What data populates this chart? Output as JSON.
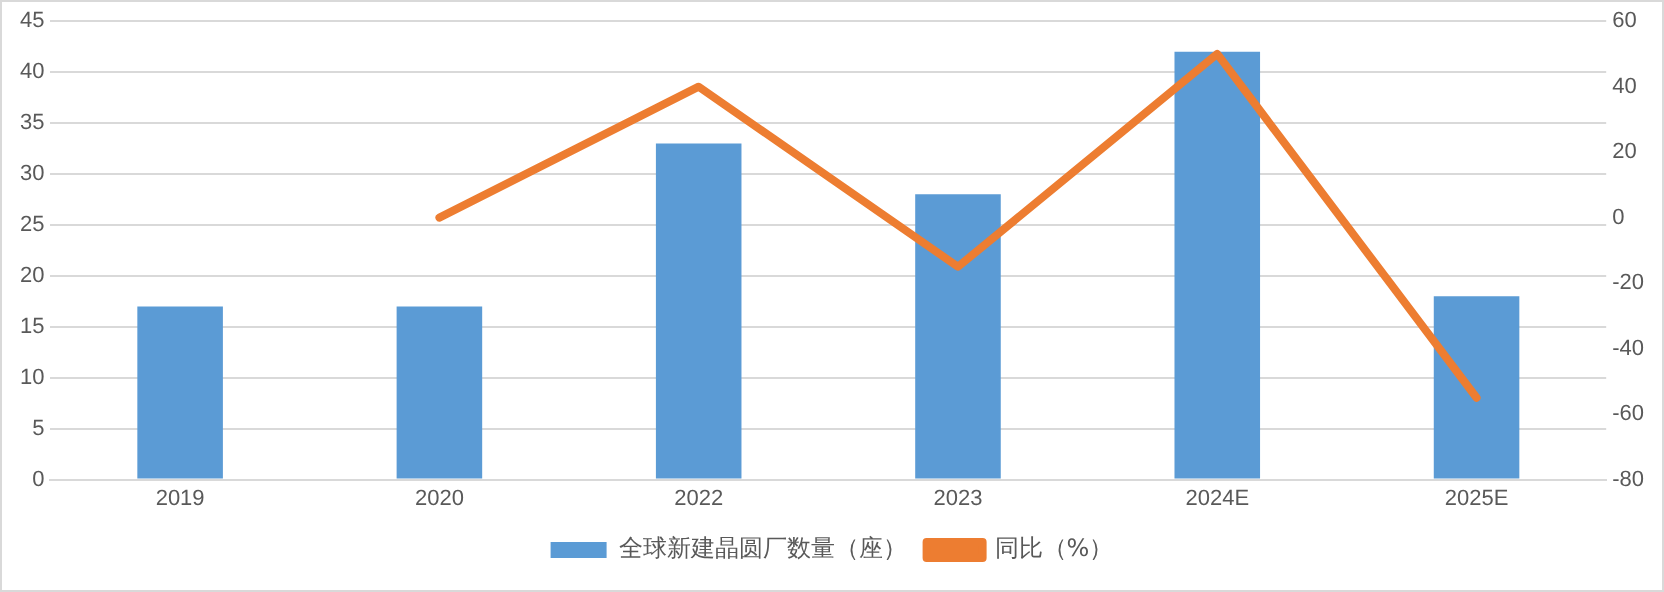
{
  "chart_data": {
    "type": "bar",
    "categories": [
      "2019",
      "2020",
      "2022",
      "2023",
      "2024E",
      "2025E"
    ],
    "series": [
      {
        "name": "全球新建晶圆厂数量（座）",
        "color": "#5b9bd5",
        "values": [
          17,
          17,
          33,
          28,
          42,
          18
        ]
      },
      {
        "name": "同比（%）",
        "type": "line",
        "axis": "y2",
        "color": "#ed7d31",
        "values": [
          null,
          0,
          40,
          -15,
          50,
          -55
        ]
      }
    ],
    "ylim": [
      0,
      45
    ],
    "yticks": [
      0,
      5,
      10,
      15,
      20,
      25,
      30,
      35,
      40,
      45
    ],
    "y2lim": [
      -80,
      60
    ],
    "y2ticks": [
      -80,
      -60,
      -40,
      -20,
      0,
      20,
      40,
      60
    ],
    "grid": "y",
    "legend": "bottom",
    "marker": "none"
  }
}
